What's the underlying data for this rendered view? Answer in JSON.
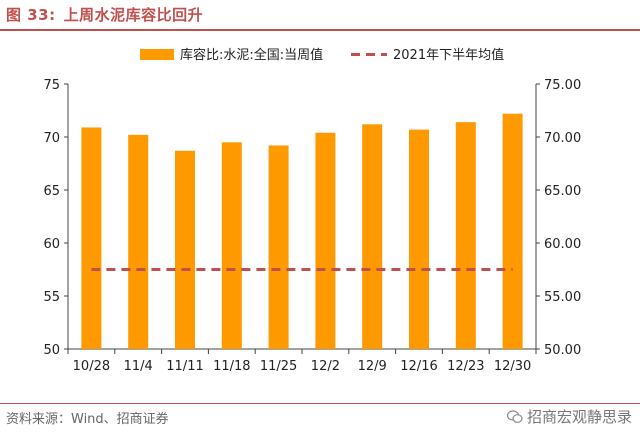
{
  "figure": {
    "label": "图 33:",
    "title": "上周水泥库容比回升"
  },
  "source": "资料来源：Wind、招商证券",
  "watermark": "招商宏观静思录",
  "colors": {
    "bar": "#ff9900",
    "avg_line": "#c0504d",
    "accent": "#c0504d"
  },
  "chart_data": {
    "type": "bar",
    "title": "",
    "xlabel": "",
    "ylabel": "",
    "categories": [
      "10/28",
      "11/4",
      "11/11",
      "11/18",
      "11/25",
      "12/2",
      "12/9",
      "12/16",
      "12/23",
      "12/30"
    ],
    "series": [
      {
        "name": "库容比:水泥:全国:当周值",
        "type": "bar",
        "axis": "left",
        "values": [
          70.9,
          70.2,
          68.7,
          69.5,
          69.2,
          70.4,
          71.2,
          70.7,
          71.4,
          72.2
        ]
      },
      {
        "name": "2021年下半年均值",
        "type": "line",
        "style": "dashed",
        "axis": "right",
        "values": [
          57.5,
          57.5,
          57.5,
          57.5,
          57.5,
          57.5,
          57.5,
          57.5,
          57.5,
          57.5
        ]
      }
    ],
    "y_left": {
      "lim": [
        50,
        75
      ],
      "ticks": [
        "50",
        "55",
        "60",
        "65",
        "70",
        "75"
      ]
    },
    "y_right": {
      "lim": [
        50,
        75
      ],
      "ticks": [
        "50.00",
        "55.00",
        "60.00",
        "65.00",
        "70.00",
        "75.00"
      ]
    },
    "legend": "top-center",
    "grid": false
  }
}
